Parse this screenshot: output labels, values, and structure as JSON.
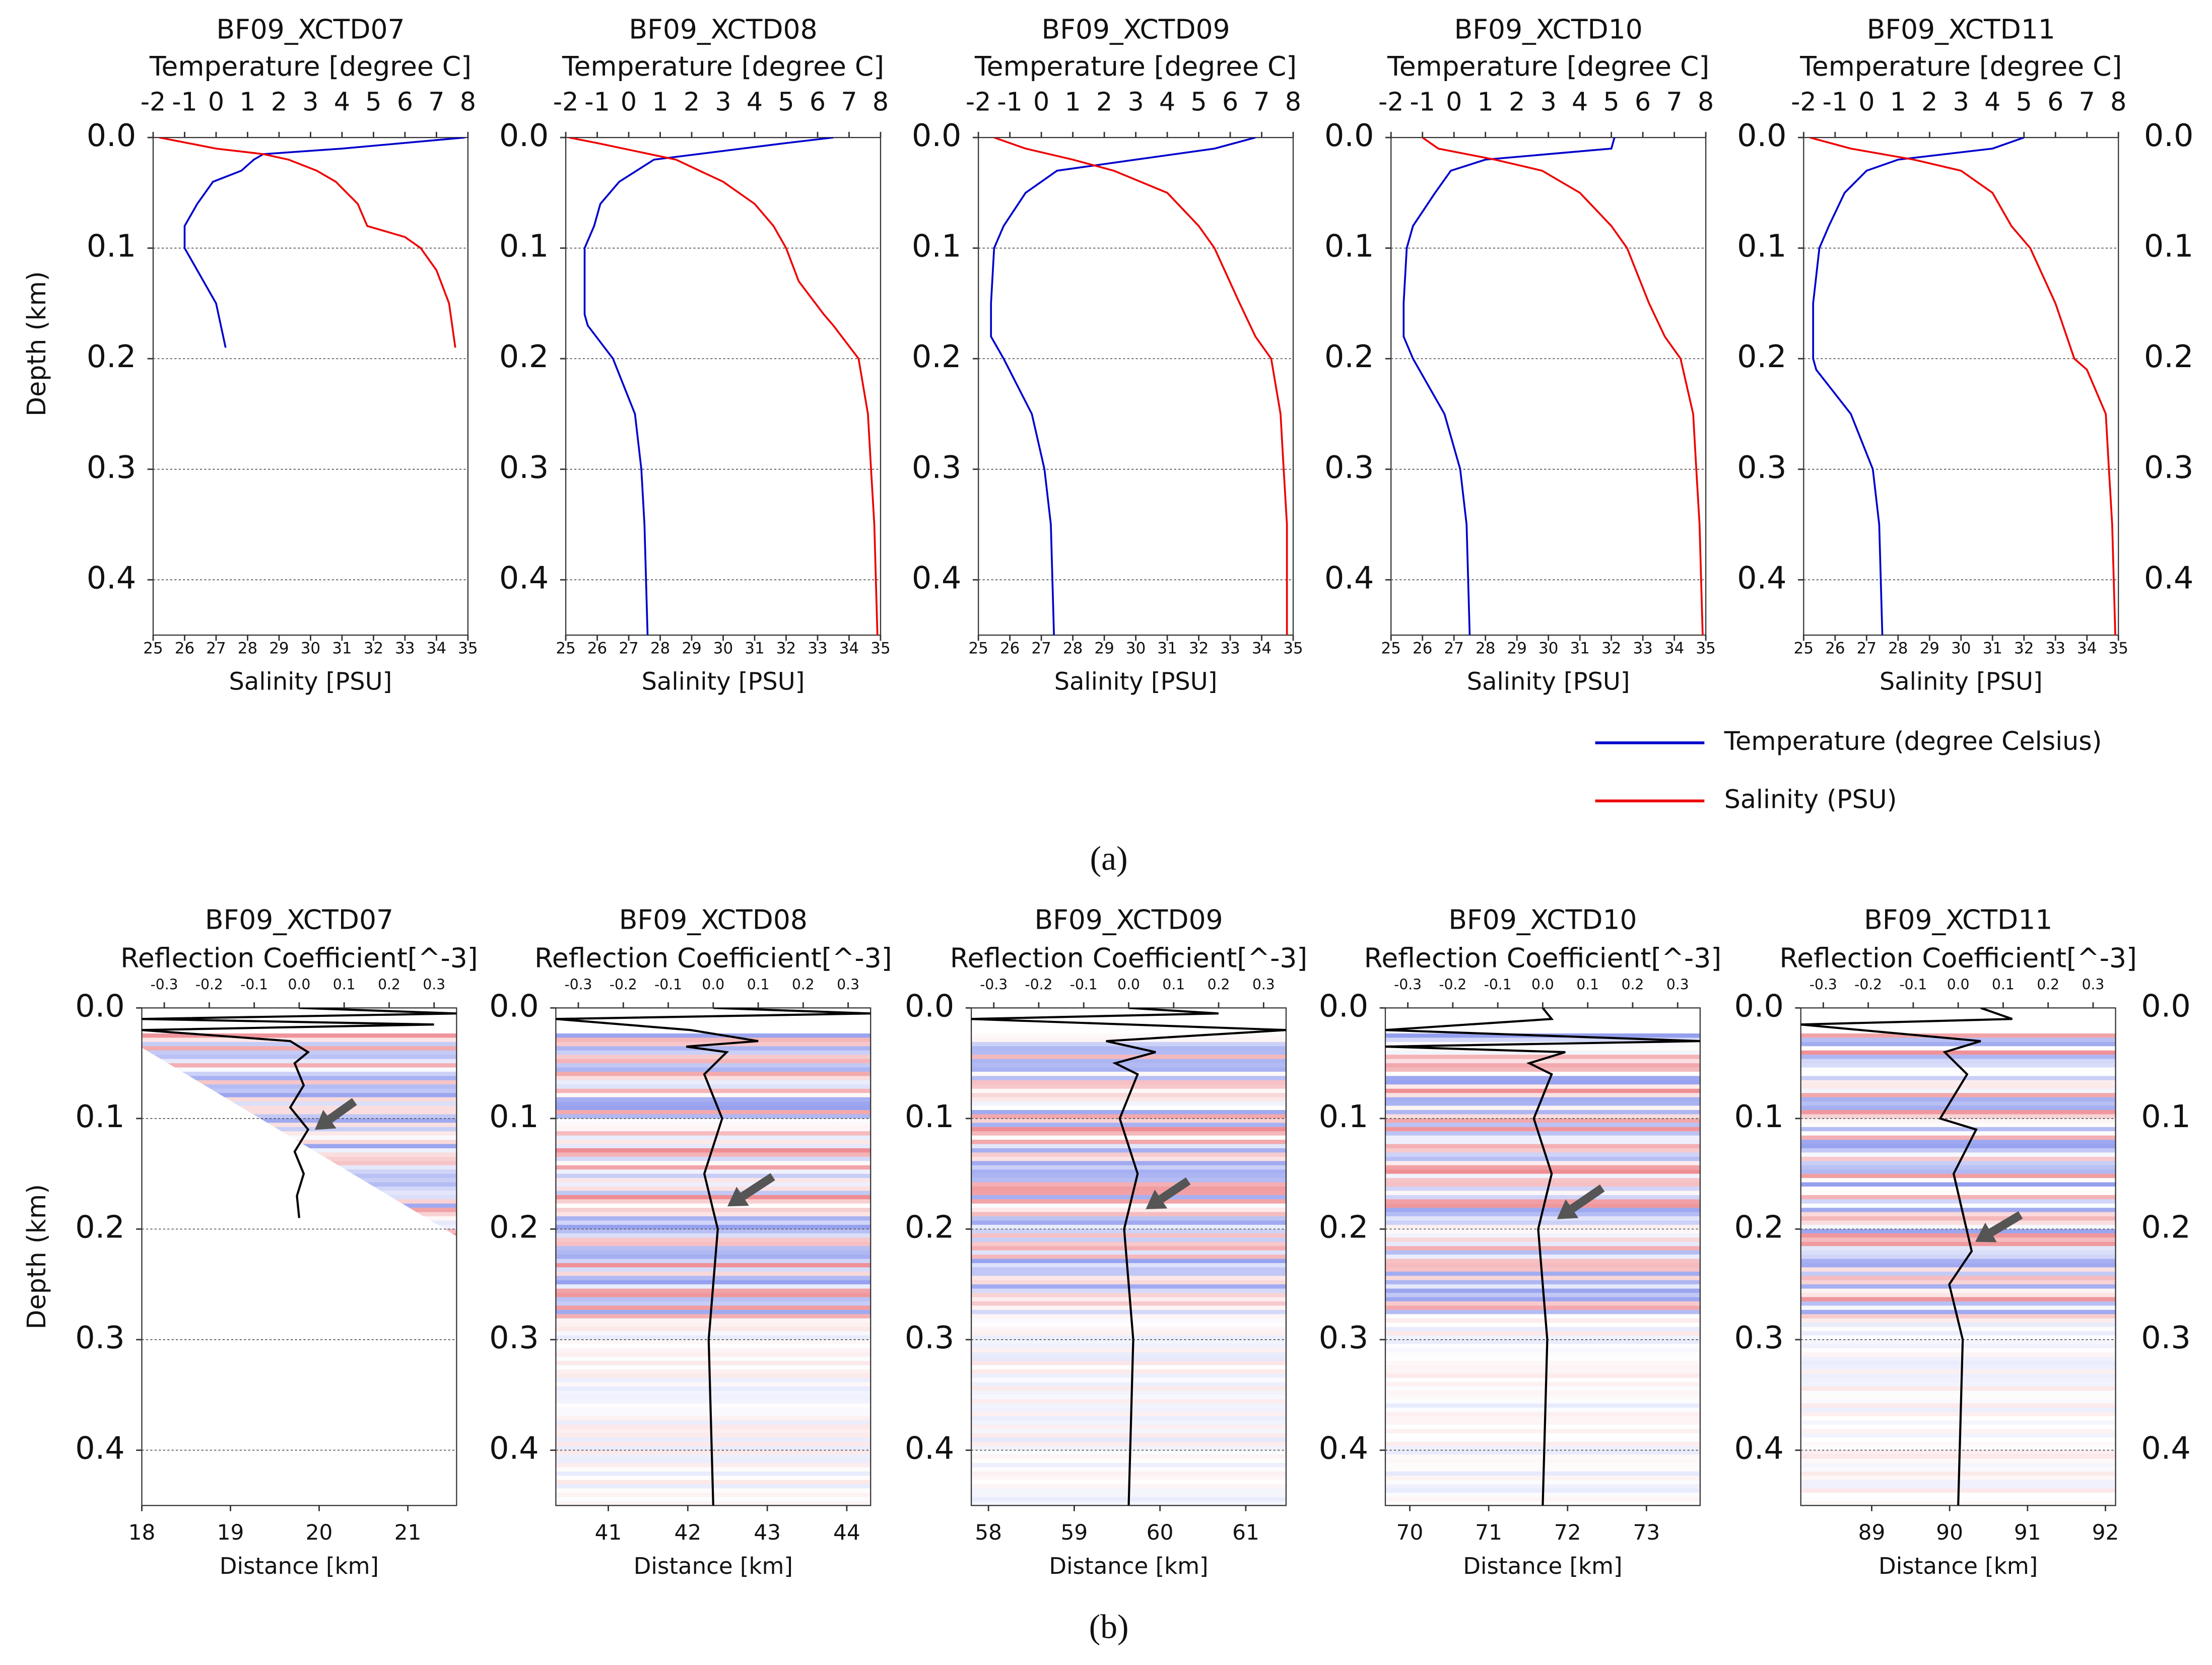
{
  "labels": [
    "(a)",
    "(b)"
  ],
  "chart_data": [
    {
      "type": "line",
      "title": "BF09_XCTD07",
      "x2label": "Temperature [degree C]",
      "xlabel": "Salinity [PSU]",
      "ylabel": "Depth (km)",
      "y": [
        0,
        0.01,
        0.015,
        0.02,
        0.03,
        0.04,
        0.06,
        0.08,
        0.09,
        0.1,
        0.12,
        0.15,
        0.19
      ],
      "series": [
        {
          "name": "Temperature (degree Celsius)",
          "color": "#0000cc",
          "axis": "x2",
          "values": [
            7.9,
            4,
            1.5,
            1.2,
            0.8,
            -0.1,
            -0.6,
            -1,
            -1,
            -1,
            -0.6,
            0,
            0.3
          ]
        },
        {
          "name": "Salinity (PSU)",
          "color": "#ee0000",
          "values": [
            25.2,
            27,
            28.5,
            29.3,
            30.2,
            30.8,
            31.5,
            31.8,
            33,
            33.5,
            34,
            34.4,
            34.6
          ]
        }
      ],
      "xlim": [
        25,
        35
      ],
      "xticks": [
        25,
        26,
        27,
        28,
        29,
        30,
        31,
        32,
        33,
        34,
        35
      ],
      "x2lim": [
        -2,
        8
      ],
      "x2ticks": [
        -2,
        -1,
        0,
        1,
        2,
        3,
        4,
        5,
        6,
        7,
        8
      ],
      "ylim": [
        0.45,
        0
      ],
      "yticks": [
        {
          "value": 0,
          "label": "0.0"
        },
        0.1,
        0.2,
        0.3,
        0.4
      ],
      "grid": true
    },
    {
      "type": "line",
      "title": "BF09_XCTD08",
      "x2label": "Temperature [degree C]",
      "xlabel": "Salinity [PSU]",
      "y": [
        0,
        0.005,
        0.02,
        0.04,
        0.06,
        0.08,
        0.1,
        0.13,
        0.16,
        0.17,
        0.2,
        0.25,
        0.3,
        0.35,
        0.45
      ],
      "series": [
        {
          "name": "Temperature (degree Celsius)",
          "color": "#0000cc",
          "axis": "x2",
          "values": [
            6.5,
            5,
            0.8,
            -0.3,
            -0.9,
            -1.1,
            -1.4,
            -1.4,
            -1.4,
            -1.3,
            -0.5,
            0.2,
            0.4,
            0.5,
            0.6
          ]
        },
        {
          "name": "Salinity (PSU)",
          "color": "#ee0000",
          "values": [
            25.1,
            26,
            28.5,
            30,
            31,
            31.6,
            32,
            32.4,
            33.2,
            33.5,
            34.3,
            34.6,
            34.7,
            34.8,
            34.9
          ]
        }
      ],
      "xlim": [
        25,
        35
      ],
      "xticks": [
        25,
        26,
        27,
        28,
        29,
        30,
        31,
        32,
        33,
        34,
        35
      ],
      "x2lim": [
        -2,
        8
      ],
      "x2ticks": [
        -2,
        -1,
        0,
        1,
        2,
        3,
        4,
        5,
        6,
        7,
        8
      ],
      "ylim": [
        0.45,
        0
      ],
      "yticks": [
        {
          "value": 0,
          "label": "0.0"
        },
        0.1,
        0.2,
        0.3,
        0.4
      ],
      "grid": true
    },
    {
      "type": "line",
      "title": "BF09_XCTD09",
      "x2label": "Temperature [degree C]",
      "xlabel": "Salinity [PSU]",
      "y": [
        0,
        0.01,
        0.02,
        0.03,
        0.05,
        0.08,
        0.1,
        0.15,
        0.18,
        0.2,
        0.25,
        0.3,
        0.35,
        0.45
      ],
      "series": [
        {
          "name": "Temperature (degree Celsius)",
          "color": "#0000cc",
          "axis": "x2",
          "values": [
            6.8,
            5.5,
            3,
            0.5,
            -0.5,
            -1.2,
            -1.5,
            -1.6,
            -1.6,
            -1.2,
            -0.3,
            0.1,
            0.3,
            0.4
          ]
        },
        {
          "name": "Salinity (PSU)",
          "color": "#ee0000",
          "values": [
            25.5,
            26.5,
            28,
            29.3,
            31,
            32,
            32.5,
            33.3,
            33.8,
            34.3,
            34.6,
            34.7,
            34.8,
            34.8
          ]
        }
      ],
      "xlim": [
        25,
        35
      ],
      "xticks": [
        25,
        26,
        27,
        28,
        29,
        30,
        31,
        32,
        33,
        34,
        35
      ],
      "x2lim": [
        -2,
        8
      ],
      "x2ticks": [
        -2,
        -1,
        0,
        1,
        2,
        3,
        4,
        5,
        6,
        7,
        8
      ],
      "ylim": [
        0.45,
        0
      ],
      "yticks": [
        {
          "value": 0,
          "label": "0.0"
        },
        0.1,
        0.2,
        0.3,
        0.4
      ],
      "grid": true
    },
    {
      "type": "line",
      "title": "BF09_XCTD10",
      "x2label": "Temperature [degree C]",
      "xlabel": "Salinity [PSU]",
      "y": [
        0,
        0.01,
        0.02,
        0.03,
        0.05,
        0.08,
        0.1,
        0.15,
        0.18,
        0.2,
        0.25,
        0.3,
        0.35,
        0.45
      ],
      "series": [
        {
          "name": "Temperature (degree Celsius)",
          "color": "#0000cc",
          "axis": "x2",
          "values": [
            5.1,
            5,
            1,
            -0.1,
            -0.6,
            -1.3,
            -1.5,
            -1.6,
            -1.6,
            -1.3,
            -0.3,
            0.2,
            0.4,
            0.5
          ]
        },
        {
          "name": "Salinity (PSU)",
          "color": "#ee0000",
          "values": [
            26,
            26.5,
            28.3,
            29.8,
            31,
            32,
            32.5,
            33.2,
            33.7,
            34.2,
            34.6,
            34.7,
            34.8,
            34.9
          ]
        }
      ],
      "xlim": [
        25,
        35
      ],
      "xticks": [
        25,
        26,
        27,
        28,
        29,
        30,
        31,
        32,
        33,
        34,
        35
      ],
      "x2lim": [
        -2,
        8
      ],
      "x2ticks": [
        -2,
        -1,
        0,
        1,
        2,
        3,
        4,
        5,
        6,
        7,
        8
      ],
      "ylim": [
        0.45,
        0
      ],
      "yticks": [
        {
          "value": 0,
          "label": "0.0"
        },
        0.1,
        0.2,
        0.3,
        0.4
      ],
      "grid": true
    },
    {
      "type": "line",
      "title": "BF09_XCTD11",
      "x2label": "Temperature [degree C]",
      "xlabel": "Salinity [PSU]",
      "y": [
        0,
        0.01,
        0.02,
        0.03,
        0.05,
        0.08,
        0.1,
        0.15,
        0.2,
        0.21,
        0.25,
        0.3,
        0.35,
        0.45
      ],
      "series": [
        {
          "name": "Temperature (degree Celsius)",
          "color": "#0000cc",
          "axis": "x2",
          "values": [
            5,
            4,
            1,
            0,
            -0.7,
            -1.2,
            -1.5,
            -1.7,
            -1.7,
            -1.6,
            -0.5,
            0.2,
            0.4,
            0.5
          ]
        },
        {
          "name": "Salinity (PSU)",
          "color": "#ee0000",
          "values": [
            25.2,
            26.5,
            28.5,
            30,
            31,
            31.6,
            32.2,
            33,
            33.6,
            34,
            34.6,
            34.7,
            34.8,
            34.9
          ]
        }
      ],
      "xlim": [
        25,
        35
      ],
      "xticks": [
        25,
        26,
        27,
        28,
        29,
        30,
        31,
        32,
        33,
        34,
        35
      ],
      "x2lim": [
        -2,
        8
      ],
      "x2ticks": [
        -2,
        -1,
        0,
        1,
        2,
        3,
        4,
        5,
        6,
        7,
        8
      ],
      "ylim": [
        0.45,
        0
      ],
      "yticks": [
        {
          "value": 0,
          "label": "0.0"
        },
        0.1,
        0.2,
        0.3,
        0.4
      ],
      "grid": true,
      "right_axis": true
    },
    {
      "type": "line",
      "title": "BF09_XCTD07",
      "x2label": "Reflection Coefficient[^-3]",
      "xlabel": "Distance [km]",
      "ylabel": "Depth (km)",
      "y": [
        0,
        0.005,
        0.01,
        0.015,
        0.02,
        0.03,
        0.04,
        0.05,
        0.07,
        0.09,
        0.11,
        0.13,
        0.15,
        0.17,
        0.19
      ],
      "series": [
        {
          "color": "#000000",
          "axis": "x2",
          "values": [
            0,
            0.35,
            -0.35,
            0.3,
            -0.35,
            -0.02,
            0.02,
            -0.01,
            0.01,
            -0.02,
            0.02,
            -0.01,
            0.01,
            -0.005,
            0
          ]
        }
      ],
      "xlim": [
        18,
        21.55
      ],
      "xticks": [
        18,
        19,
        20,
        21
      ],
      "x2lim": [
        -0.35,
        0.35
      ],
      "x2ticks": [
        -0.3,
        -0.2,
        -0.1,
        {
          "value": 0,
          "label": "0.0"
        },
        0.1,
        0.2,
        0.3
      ],
      "ylim": [
        0.45,
        0
      ],
      "yticks": [
        {
          "value": 0,
          "label": "0.0"
        },
        0.1,
        0.2,
        0.3,
        0.4
      ],
      "grid": true
    },
    {
      "type": "line",
      "title": "BF09_XCTD08",
      "x2label": "Reflection Coefficient[^-3]",
      "xlabel": "Distance [km]",
      "y": [
        0,
        0.005,
        0.01,
        0.02,
        0.03,
        0.035,
        0.04,
        0.06,
        0.1,
        0.15,
        0.2,
        0.3,
        0.45
      ],
      "series": [
        {
          "color": "#000000",
          "axis": "x2",
          "values": [
            0,
            0.35,
            -0.35,
            -0.05,
            0.1,
            -0.06,
            0.03,
            -0.02,
            0.02,
            -0.02,
            0.01,
            -0.01,
            0
          ]
        }
      ],
      "xlim": [
        40.34,
        44.3
      ],
      "xticks": [
        41,
        42,
        43,
        44
      ],
      "x2lim": [
        -0.35,
        0.35
      ],
      "x2ticks": [
        -0.3,
        -0.2,
        -0.1,
        {
          "value": 0,
          "label": "0.0"
        },
        0.1,
        0.2,
        0.3
      ],
      "ylim": [
        0.45,
        0
      ],
      "yticks": [
        {
          "value": 0,
          "label": "0.0"
        },
        0.1,
        0.2,
        0.3,
        0.4
      ],
      "grid": true
    },
    {
      "type": "line",
      "title": "BF09_XCTD09",
      "x2label": "Reflection Coefficient[^-3]",
      "xlabel": "Distance [km]",
      "y": [
        0,
        0.005,
        0.01,
        0.02,
        0.03,
        0.04,
        0.05,
        0.06,
        0.1,
        0.15,
        0.2,
        0.3,
        0.45
      ],
      "series": [
        {
          "color": "#000000",
          "axis": "x2",
          "values": [
            0,
            0.2,
            -0.35,
            0.35,
            -0.05,
            0.06,
            -0.03,
            0.02,
            -0.02,
            0.02,
            -0.01,
            0.01,
            0
          ]
        }
      ],
      "xlim": [
        57.8,
        61.47
      ],
      "xticks": [
        58,
        59,
        60,
        61
      ],
      "x2lim": [
        -0.35,
        0.35
      ],
      "x2ticks": [
        -0.3,
        -0.2,
        -0.1,
        {
          "value": 0,
          "label": "0.0"
        },
        0.1,
        0.2,
        0.3
      ],
      "ylim": [
        0.45,
        0
      ],
      "yticks": [
        {
          "value": 0,
          "label": "0.0"
        },
        0.1,
        0.2,
        0.3,
        0.4
      ],
      "grid": true
    },
    {
      "type": "line",
      "title": "BF09_XCTD10",
      "x2label": "Reflection Coefficient[^-3]",
      "xlabel": "Distance [km]",
      "y": [
        0,
        0.01,
        0.02,
        0.03,
        0.035,
        0.04,
        0.05,
        0.06,
        0.1,
        0.15,
        0.2,
        0.3,
        0.45
      ],
      "series": [
        {
          "color": "#000000",
          "axis": "x2",
          "values": [
            0,
            0.02,
            -0.35,
            0.35,
            -0.35,
            0.05,
            -0.03,
            0.02,
            -0.02,
            0.02,
            -0.01,
            0.01,
            0
          ]
        }
      ],
      "xlim": [
        69.69,
        73.68
      ],
      "xticks": [
        70,
        71,
        72,
        73
      ],
      "x2lim": [
        -0.35,
        0.35
      ],
      "x2ticks": [
        -0.3,
        -0.2,
        -0.1,
        {
          "value": 0,
          "label": "0.0"
        },
        0.1,
        0.2,
        0.3
      ],
      "ylim": [
        0.45,
        0
      ],
      "yticks": [
        {
          "value": 0,
          "label": "0.0"
        },
        0.1,
        0.2,
        0.3,
        0.4
      ],
      "grid": true
    },
    {
      "type": "line",
      "title": "BF09_XCTD11",
      "x2label": "Reflection Coefficient[^-3]",
      "xlabel": "Distance [km]",
      "y": [
        0,
        0.01,
        0.015,
        0.03,
        0.04,
        0.06,
        0.1,
        0.11,
        0.15,
        0.22,
        0.25,
        0.3,
        0.45
      ],
      "series": [
        {
          "color": "#000000",
          "axis": "x2",
          "values": [
            0.05,
            0.12,
            -0.35,
            0.05,
            -0.03,
            0.02,
            -0.04,
            0.04,
            -0.01,
            0.03,
            -0.02,
            0.01,
            0
          ]
        }
      ],
      "xlim": [
        88.09,
        92.13
      ],
      "xticks": [
        89,
        90,
        91,
        92
      ],
      "x2lim": [
        -0.35,
        0.35
      ],
      "x2ticks": [
        -0.3,
        -0.2,
        -0.1,
        {
          "value": 0,
          "label": "0.0"
        },
        0.1,
        0.2,
        0.3
      ],
      "ylim": [
        0.45,
        0
      ],
      "yticks": [
        {
          "value": 0,
          "label": "0.0"
        },
        0.1,
        0.2,
        0.3,
        0.4
      ],
      "grid": true,
      "right_axis": true
    }
  ]
}
